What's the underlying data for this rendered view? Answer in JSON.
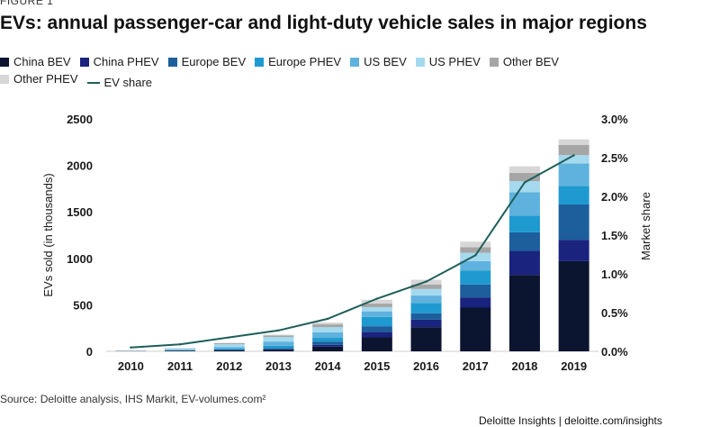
{
  "figure_label": "FIGURE 1",
  "source": "Source: Deloitte analysis, IHS Markit, EV-volumes.com²",
  "footer": "Deloitte Insights | deloitte.com/insights",
  "chart_data": {
    "type": "bar",
    "stacked": true,
    "title": "EVs: annual passenger-car and light-duty vehicle sales in major regions",
    "ylabel": "EVs sold (in thousands)",
    "y2label": "Market share",
    "ylim": [
      0,
      2500
    ],
    "y2lim": [
      0,
      0.03
    ],
    "yticks": [
      "0",
      "500",
      "1000",
      "1500",
      "2000",
      "2500"
    ],
    "y2ticks": [
      "0.0%",
      "0.5%",
      "1.0%",
      "1.5%",
      "2.0%",
      "2.5%",
      "3.0%"
    ],
    "categories": [
      "2010",
      "2011",
      "2012",
      "2013",
      "2014",
      "2015",
      "2016",
      "2017",
      "2018",
      "2019"
    ],
    "legend_position": "top",
    "grid": false,
    "series": [
      {
        "name": "China BEV",
        "color": "#0b1530",
        "values": [
          2,
          5,
          10,
          15,
          50,
          150,
          260,
          470,
          820,
          970
        ]
      },
      {
        "name": "China PHEV",
        "color": "#1a237e",
        "values": [
          0,
          1,
          2,
          5,
          20,
          60,
          80,
          110,
          260,
          230
        ]
      },
      {
        "name": "Europe BEV",
        "color": "#1c5f9c",
        "values": [
          1,
          3,
          8,
          15,
          35,
          60,
          70,
          140,
          200,
          380
        ]
      },
      {
        "name": "Europe PHEV",
        "color": "#1e9ad0",
        "values": [
          0,
          2,
          12,
          25,
          40,
          100,
          110,
          150,
          180,
          200
        ]
      },
      {
        "name": "US BEV",
        "color": "#5fb2dd",
        "values": [
          1,
          10,
          15,
          45,
          60,
          60,
          80,
          100,
          250,
          240
        ]
      },
      {
        "name": "US PHEV",
        "color": "#a4d9ee",
        "values": [
          1,
          10,
          30,
          50,
          55,
          45,
          70,
          90,
          120,
          90
        ]
      },
      {
        "name": "Other BEV",
        "color": "#a6a6a6",
        "values": [
          2,
          3,
          10,
          15,
          30,
          40,
          50,
          60,
          90,
          110
        ]
      },
      {
        "name": "Other PHEV",
        "color": "#d6d6d6",
        "values": [
          0,
          1,
          5,
          10,
          20,
          40,
          50,
          60,
          70,
          60
        ]
      }
    ],
    "line_series": {
      "name": "EV share",
      "color": "#1f5f5a",
      "axis": "right",
      "values": [
        0.0005,
        0.0009,
        0.0018,
        0.0027,
        0.0042,
        0.0068,
        0.009,
        0.0124,
        0.0218,
        0.0253
      ]
    }
  }
}
